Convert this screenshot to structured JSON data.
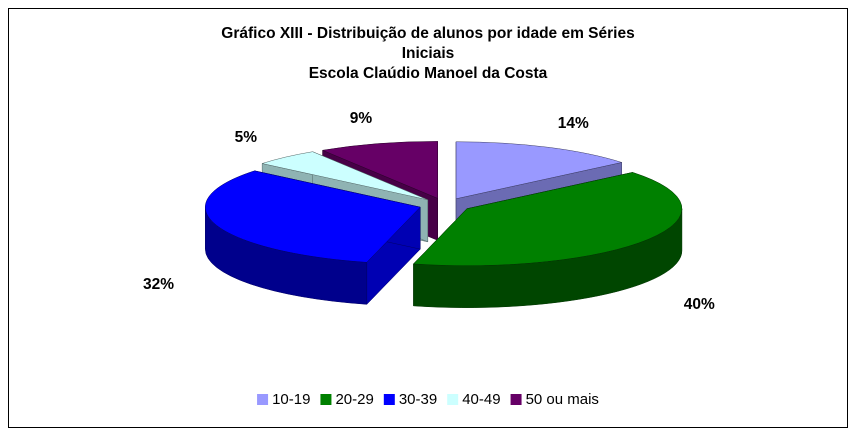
{
  "chart_data": {
    "type": "pie3d",
    "title": "Gráfico XIII - Distribuição de alunos por idade em Séries Iniciais",
    "subtitle": "Escola Claúdio Manoel da Costa",
    "categories": [
      "10-19",
      "20-29",
      "30-39",
      "40-49",
      "50 ou mais"
    ],
    "values": [
      14,
      40,
      32,
      5,
      9
    ],
    "value_labels": [
      "14%",
      "40%",
      "32%",
      "5%",
      "9%"
    ],
    "colors": [
      "#9999ff",
      "#008000",
      "#0000ff",
      "#ccffff",
      "#660066"
    ],
    "legend": "bottom"
  }
}
